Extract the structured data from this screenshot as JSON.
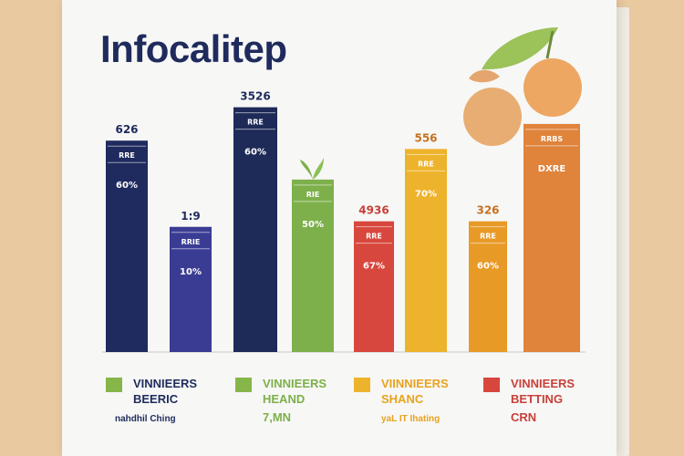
{
  "chart_data": {
    "type": "bar",
    "title": "Infocalitep",
    "xlabel": "",
    "ylabel": "",
    "ylim": [
      0,
      100
    ],
    "categories": [
      "",
      "",
      "",
      "",
      "",
      "",
      "",
      ""
    ],
    "values": [
      76,
      45,
      88,
      62,
      47,
      73,
      47,
      82
    ],
    "top_labels": [
      "626",
      "1:9",
      "3526",
      "",
      "4936",
      "556",
      "326",
      ""
    ],
    "upper_labels": [
      "RRE",
      "RRIE",
      "RRE",
      "RIE",
      "RRE",
      "RRE",
      "RRE",
      "RRBS"
    ],
    "pct_labels": [
      "60%",
      "10%",
      "60%",
      "50%",
      "67%",
      "70%",
      "60%",
      "DXRE"
    ],
    "bar_colors": [
      "#1f2a5e",
      "#3a3c94",
      "#1e2b58",
      "#7db04a",
      "#d8473d",
      "#eeb32c",
      "#e89a26",
      "#e0833b"
    ],
    "legend": [
      {
        "color": "#86b54a",
        "line1": "VINNIEERS",
        "line2": "BEERIC",
        "line3": "nahdhil Ching"
      },
      {
        "color": "#86b54a",
        "line1": "VINNIEERS",
        "line2": "HEAND",
        "line3": "7,MN"
      },
      {
        "color": "#eeb32c",
        "line1": "VIINNIEERS",
        "line2": "SHANC",
        "line3": "yaL IT Ihating"
      },
      {
        "color": "#d8473d",
        "line1": "VINNIEERS",
        "line2": "BETTING",
        "line3": "CRN"
      }
    ],
    "legend_text_colors": [
      "#1f2b5c",
      "#7db04a",
      "#e8a21e",
      "#c8403a"
    ]
  }
}
